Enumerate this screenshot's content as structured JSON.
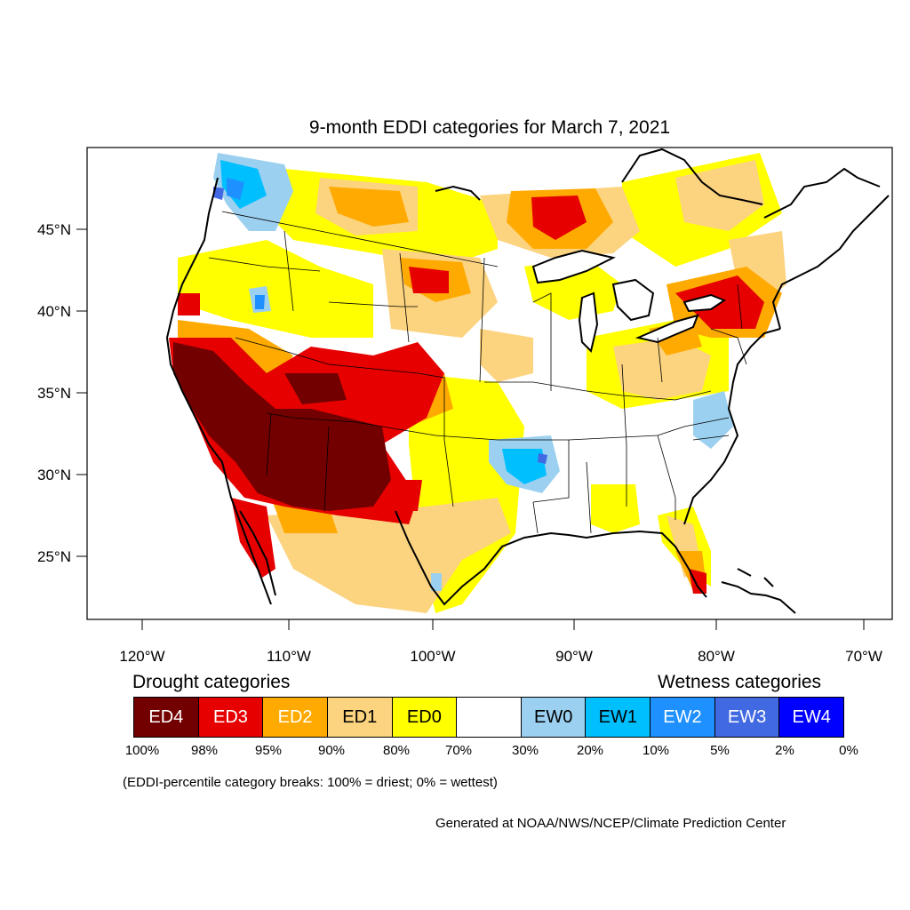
{
  "title": "9-month EDDI categories for March 7, 2021",
  "axes": {
    "lat_labels": [
      "45°N",
      "40°N",
      "35°N",
      "30°N",
      "25°N"
    ],
    "lon_labels": [
      "120°W",
      "110°W",
      "100°W",
      "90°W",
      "80°W",
      "70°W"
    ]
  },
  "legend": {
    "drought_heading": "Drought categories",
    "wetness_heading": "Wetness categories",
    "categories": [
      {
        "label": "ED4",
        "color": "#730000",
        "text_color": "#ffffff"
      },
      {
        "label": "ED3",
        "color": "#e60000",
        "text_color": "#ffffff"
      },
      {
        "label": "ED2",
        "color": "#ffaa00",
        "text_color": "#ffffff"
      },
      {
        "label": "ED1",
        "color": "#fcd37f",
        "text_color": "#000000"
      },
      {
        "label": "ED0",
        "color": "#ffff00",
        "text_color": "#000000"
      },
      {
        "label": "",
        "color": "#ffffff",
        "text_color": "#000000"
      },
      {
        "label": "EW0",
        "color": "#9bd0f0",
        "text_color": "#000000"
      },
      {
        "label": "EW1",
        "color": "#00bfff",
        "text_color": "#000000"
      },
      {
        "label": "EW2",
        "color": "#1e90ff",
        "text_color": "#ffffff"
      },
      {
        "label": "EW3",
        "color": "#4169e1",
        "text_color": "#ffffff"
      },
      {
        "label": "EW4",
        "color": "#0000ff",
        "text_color": "#ffffff"
      }
    ],
    "percent_breaks": [
      "100%",
      "98%",
      "95%",
      "90%",
      "80%",
      "70%",
      "30%",
      "20%",
      "10%",
      "5%",
      "2%",
      "0%"
    ]
  },
  "note": "(EDDI-percentile category breaks: 100% = driest; 0% = wettest)",
  "credit": "Generated at NOAA/NWS/NCEP/Climate Prediction Center"
}
